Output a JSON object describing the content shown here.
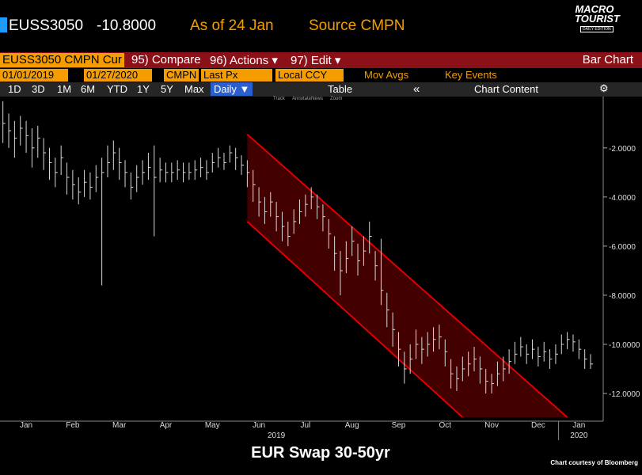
{
  "header": {
    "ticker": "EUSS3050",
    "last": "-10.8000",
    "as_of": "As of 24 Jan",
    "source": "Source CMPN",
    "logo": "MACRO TOURIST",
    "logo_sub": "DAILY EDITION"
  },
  "toolbar": {
    "security": "EUSS3050 CMPN Cur",
    "compare": "95) Compare",
    "actions": "96) Actions ▾",
    "edit": "97) Edit ▾",
    "chart_kind": "Bar Chart",
    "start": "01/01/2019",
    "end": "01/27/2020",
    "pricing": "CMPN",
    "field": "Last Px",
    "currency": "Local CCY",
    "mov_avgs": "Mov Avgs",
    "key_events": "Key Events",
    "periods": [
      "1D",
      "3D",
      "1M",
      "6M",
      "YTD",
      "1Y",
      "5Y",
      "Max"
    ],
    "frequency": "Daily ▼",
    "table": "Table",
    "chart_content": "Chart Content",
    "tools": [
      "Track",
      "Annotate",
      "News",
      "Zoom"
    ]
  },
  "chart_data": {
    "type": "ohlc",
    "title": "EUR Swap 30-50yr",
    "credit": "Chart courtesy of Bloomberg",
    "color": "#d8d8d8",
    "channel_color": "#e00000",
    "years": [
      "2019",
      "2020"
    ],
    "categories": [
      null,
      null,
      null,
      null,
      "Jan",
      null,
      null,
      null,
      null,
      null,
      null,
      null,
      "Feb",
      null,
      null,
      null,
      null,
      null,
      null,
      null,
      "Mar",
      null,
      null,
      null,
      null,
      null,
      null,
      null,
      "Apr",
      null,
      null,
      null,
      null,
      null,
      null,
      null,
      "May",
      null,
      null,
      null,
      null,
      null,
      null,
      null,
      "Jun",
      null,
      null,
      null,
      null,
      null,
      null,
      null,
      "Jul",
      null,
      null,
      null,
      null,
      null,
      null,
      null,
      "Aug",
      null,
      null,
      null,
      null,
      null,
      null,
      null,
      "Sep",
      null,
      null,
      null,
      null,
      null,
      null,
      null,
      "Oct",
      null,
      null,
      null,
      null,
      null,
      null,
      null,
      "Nov",
      null,
      null,
      null,
      null,
      null,
      null,
      null,
      "Dec",
      null,
      null,
      null,
      null,
      null,
      null,
      "Jan",
      null,
      null
    ],
    "high": [
      -0.1,
      -0.6,
      -0.9,
      -0.7,
      -0.9,
      -1.2,
      -1.1,
      -1.6,
      -2.0,
      -2.4,
      -1.9,
      -2.6,
      -2.9,
      -3.2,
      -2.9,
      -3.0,
      -2.7,
      -2.4,
      -1.9,
      -1.7,
      -2.0,
      -2.5,
      -3.0,
      -2.7,
      -2.5,
      -2.2,
      -1.9,
      -2.4,
      -2.6,
      -2.6,
      -2.5,
      -2.6,
      -2.6,
      -2.5,
      -2.4,
      -2.5,
      -2.2,
      -2.0,
      -2.2,
      -1.9,
      -2.0,
      -2.3,
      -2.5,
      -2.9,
      -3.6,
      -4.0,
      -3.8,
      -4.2,
      -4.6,
      -5.0,
      -4.5,
      -4.1,
      -3.9,
      -3.6,
      -3.9,
      -4.3,
      -4.9,
      -5.6,
      -6.2,
      -5.8,
      -5.2,
      -5.9,
      -5.6,
      -5.0,
      -6.2,
      -5.7,
      -7.9,
      -8.7,
      -9.5,
      -10.3,
      -10.0,
      -9.4,
      -9.7,
      -9.5,
      -9.3,
      -9.2,
      -9.8,
      -10.6,
      -10.9,
      -10.5,
      -10.3,
      -10.1,
      -10.5,
      -11.0,
      -11.2,
      -10.7,
      -10.5,
      -10.2,
      -9.9,
      -9.7,
      -10.0,
      -9.8,
      -10.1,
      -9.9,
      -10.2,
      -10.0,
      -9.6,
      -9.5,
      -9.6,
      -9.8,
      -10.2,
      -10.4
    ],
    "low": [
      -1.8,
      -2.0,
      -2.4,
      -1.9,
      -2.2,
      -2.8,
      -2.4,
      -2.9,
      -3.3,
      -3.6,
      -3.1,
      -3.9,
      -4.1,
      -4.3,
      -4.0,
      -4.1,
      -3.8,
      -7.6,
      -3.2,
      -2.9,
      -3.3,
      -3.6,
      -4.1,
      -3.8,
      -3.5,
      -3.3,
      -5.6,
      -3.4,
      -3.4,
      -3.4,
      -3.3,
      -3.4,
      -3.3,
      -3.3,
      -3.2,
      -3.3,
      -3.0,
      -2.8,
      -2.9,
      -2.6,
      -2.9,
      -3.1,
      -3.6,
      -4.2,
      -4.8,
      -5.1,
      -4.8,
      -5.4,
      -5.8,
      -6.0,
      -5.5,
      -5.1,
      -4.8,
      -4.5,
      -4.9,
      -5.4,
      -6.1,
      -7.0,
      -8.0,
      -7.1,
      -6.4,
      -7.2,
      -6.8,
      -6.3,
      -7.4,
      -8.4,
      -9.3,
      -10.1,
      -10.9,
      -11.6,
      -11.2,
      -10.6,
      -10.8,
      -10.5,
      -10.3,
      -10.2,
      -10.9,
      -11.8,
      -11.9,
      -11.5,
      -11.3,
      -11.1,
      -11.6,
      -12.0,
      -12.0,
      -11.7,
      -11.5,
      -11.2,
      -10.8,
      -10.5,
      -10.8,
      -10.6,
      -10.9,
      -10.7,
      -11.0,
      -10.8,
      -10.4,
      -10.2,
      -10.3,
      -10.6,
      -11.0,
      -11.0
    ],
    "close": [
      -1.0,
      -1.3,
      -1.6,
      -1.2,
      -1.5,
      -2.0,
      -1.6,
      -2.2,
      -2.6,
      -3.0,
      -2.4,
      -3.2,
      -3.5,
      -3.8,
      -3.4,
      -3.6,
      -3.2,
      -3.0,
      -2.6,
      -2.2,
      -2.6,
      -3.0,
      -3.6,
      -3.2,
      -3.0,
      -2.8,
      -3.2,
      -2.9,
      -3.0,
      -3.0,
      -2.9,
      -3.0,
      -3.0,
      -2.9,
      -2.8,
      -3.0,
      -2.6,
      -2.4,
      -2.6,
      -2.2,
      -2.4,
      -2.7,
      -3.0,
      -3.5,
      -4.2,
      -4.6,
      -4.2,
      -4.8,
      -5.2,
      -5.6,
      -5.0,
      -4.6,
      -4.3,
      -4.0,
      -4.4,
      -4.8,
      -5.5,
      -6.3,
      -7.0,
      -6.5,
      -5.8,
      -6.6,
      -6.2,
      -5.6,
      -6.8,
      -7.8,
      -8.6,
      -9.4,
      -10.2,
      -11.0,
      -10.6,
      -10.0,
      -10.2,
      -10.0,
      -9.8,
      -9.7,
      -10.3,
      -11.2,
      -11.4,
      -11.0,
      -10.8,
      -10.6,
      -11.0,
      -11.5,
      -11.6,
      -11.2,
      -11.0,
      -10.7,
      -10.4,
      -10.1,
      -10.4,
      -10.2,
      -10.5,
      -10.3,
      -10.6,
      -10.4,
      -10.0,
      -9.8,
      -9.9,
      -10.2,
      -10.6,
      -10.8
    ],
    "channel": {
      "upper": {
        "x": [
          42,
          97
        ],
        "y": [
          -1.45,
          -12.97
        ]
      },
      "lower": {
        "x": [
          42,
          79
        ],
        "y": [
          -5.0,
          -12.97
        ]
      }
    },
    "ylim": [
      -13,
      -0.2
    ],
    "yticks": [
      {
        "value": -2,
        "label": "-2.0000"
      },
      {
        "value": -4,
        "label": "-4.0000"
      },
      {
        "value": -6,
        "label": "-6.0000"
      },
      {
        "value": -8,
        "label": "-8.0000"
      },
      {
        "value": -10,
        "label": "-10.0000"
      },
      {
        "value": -12,
        "label": "-12.0000"
      }
    ]
  }
}
